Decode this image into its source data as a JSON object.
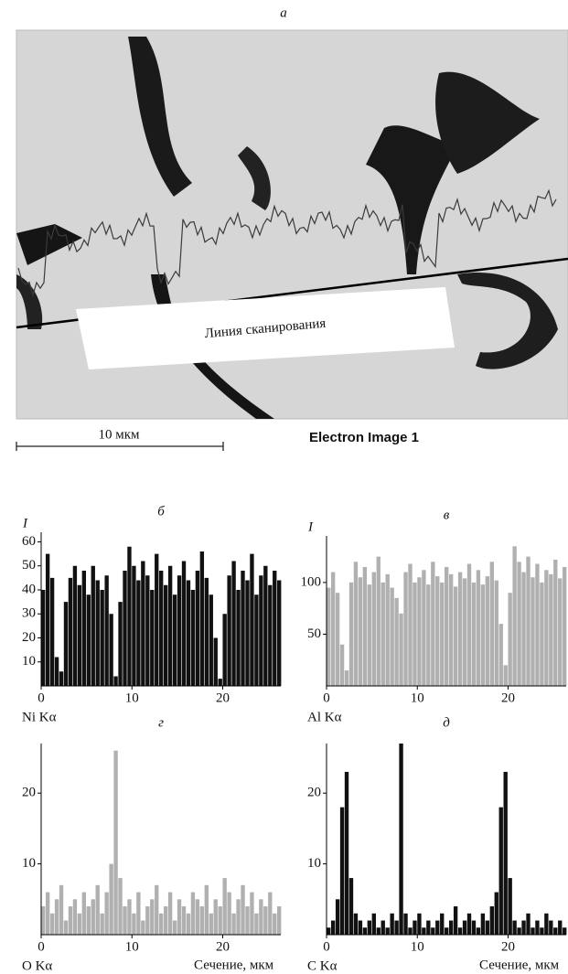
{
  "image": {
    "title": "а",
    "scale_label": "10 мкм",
    "caption": "Electron Image 1",
    "line_label": "Линия сканирования"
  },
  "chart_data": [
    {
      "type": "bar",
      "title": "б",
      "ylabel": "I",
      "series_label": "Ni Kα",
      "color": "#111111",
      "x": [
        0,
        0.5,
        1,
        1.5,
        2,
        2.5,
        3,
        3.5,
        4,
        4.5,
        5,
        5.5,
        6,
        6.5,
        7,
        7.5,
        8,
        8.5,
        9,
        9.5,
        10,
        10.5,
        11,
        11.5,
        12,
        12.5,
        13,
        13.5,
        14,
        14.5,
        15,
        15.5,
        16,
        16.5,
        17,
        17.5,
        18,
        18.5,
        19,
        19.5,
        20,
        20.5,
        21,
        21.5,
        22,
        22.5,
        23,
        23.5,
        24,
        24.5,
        25,
        25.5,
        26
      ],
      "values": [
        40,
        55,
        45,
        12,
        6,
        35,
        45,
        50,
        42,
        48,
        38,
        50,
        44,
        40,
        46,
        30,
        4,
        35,
        48,
        58,
        50,
        44,
        52,
        46,
        40,
        55,
        48,
        42,
        50,
        38,
        46,
        52,
        44,
        40,
        48,
        56,
        45,
        38,
        20,
        3,
        30,
        46,
        52,
        40,
        48,
        44,
        55,
        38,
        46,
        50,
        42,
        48,
        44
      ],
      "xlim": [
        0,
        26.4
      ],
      "xticks": [
        0,
        10,
        20
      ],
      "ylim": [
        0,
        64
      ],
      "yticks": [
        10,
        20,
        30,
        40,
        50,
        60
      ]
    },
    {
      "type": "bar",
      "title": "в",
      "ylabel": "I",
      "series_label": "Al Kα",
      "color": "#b0b0b0",
      "x": [
        0,
        0.5,
        1,
        1.5,
        2,
        2.5,
        3,
        3.5,
        4,
        4.5,
        5,
        5.5,
        6,
        6.5,
        7,
        7.5,
        8,
        8.5,
        9,
        9.5,
        10,
        10.5,
        11,
        11.5,
        12,
        12.5,
        13,
        13.5,
        14,
        14.5,
        15,
        15.5,
        16,
        16.5,
        17,
        17.5,
        18,
        18.5,
        19,
        19.5,
        20,
        20.5,
        21,
        21.5,
        22,
        22.5,
        23,
        23.5,
        24,
        24.5,
        25,
        25.5,
        26
      ],
      "values": [
        95,
        110,
        90,
        40,
        15,
        100,
        120,
        105,
        115,
        98,
        110,
        125,
        100,
        108,
        95,
        85,
        70,
        110,
        118,
        100,
        105,
        112,
        98,
        120,
        106,
        100,
        115,
        108,
        96,
        110,
        104,
        118,
        100,
        112,
        98,
        106,
        120,
        102,
        60,
        20,
        90,
        135,
        120,
        110,
        125,
        105,
        118,
        100,
        112,
        108,
        122,
        104,
        115
      ],
      "xlim": [
        0,
        26.4
      ],
      "xticks": [
        0,
        10,
        20
      ],
      "ylim": [
        0,
        145
      ],
      "yticks": [
        50,
        100
      ]
    },
    {
      "type": "bar",
      "title": "г",
      "series_label": "O Kα",
      "xlabel": "Сечение, мкм",
      "color": "#b0b0b0",
      "x": [
        0,
        0.5,
        1,
        1.5,
        2,
        2.5,
        3,
        3.5,
        4,
        4.5,
        5,
        5.5,
        6,
        6.5,
        7,
        7.5,
        8,
        8.5,
        9,
        9.5,
        10,
        10.5,
        11,
        11.5,
        12,
        12.5,
        13,
        13.5,
        14,
        14.5,
        15,
        15.5,
        16,
        16.5,
        17,
        17.5,
        18,
        18.5,
        19,
        19.5,
        20,
        20.5,
        21,
        21.5,
        22,
        22.5,
        23,
        23.5,
        24,
        24.5,
        25,
        25.5,
        26
      ],
      "values": [
        4,
        6,
        3,
        5,
        7,
        2,
        4,
        5,
        3,
        6,
        4,
        5,
        7,
        3,
        6,
        10,
        26,
        8,
        4,
        5,
        3,
        6,
        2,
        4,
        5,
        7,
        3,
        4,
        6,
        2,
        5,
        4,
        3,
        6,
        5,
        4,
        7,
        3,
        5,
        4,
        8,
        6,
        3,
        5,
        7,
        4,
        6,
        3,
        5,
        4,
        6,
        3,
        4
      ],
      "xlim": [
        0,
        26.4
      ],
      "xticks": [
        0,
        10,
        20
      ],
      "ylim": [
        0,
        27
      ],
      "yticks": [
        10,
        20
      ]
    },
    {
      "type": "bar",
      "title": "д",
      "series_label": "C Kα",
      "xlabel": "Сечение, мкм",
      "color": "#111111",
      "x": [
        0,
        0.5,
        1,
        1.5,
        2,
        2.5,
        3,
        3.5,
        4,
        4.5,
        5,
        5.5,
        6,
        6.5,
        7,
        7.5,
        8,
        8.5,
        9,
        9.5,
        10,
        10.5,
        11,
        11.5,
        12,
        12.5,
        13,
        13.5,
        14,
        14.5,
        15,
        15.5,
        16,
        16.5,
        17,
        17.5,
        18,
        18.5,
        19,
        19.5,
        20,
        20.5,
        21,
        21.5,
        22,
        22.5,
        23,
        23.5,
        24,
        24.5,
        25,
        25.5,
        26
      ],
      "values": [
        1,
        2,
        5,
        18,
        23,
        8,
        3,
        2,
        1,
        2,
        3,
        1,
        2,
        1,
        3,
        2,
        27,
        3,
        1,
        2,
        3,
        1,
        2,
        1,
        2,
        3,
        1,
        2,
        4,
        1,
        2,
        3,
        2,
        1,
        3,
        2,
        4,
        6,
        18,
        23,
        8,
        2,
        1,
        2,
        3,
        1,
        2,
        1,
        3,
        2,
        1,
        2,
        1
      ],
      "xlim": [
        0,
        26.4
      ],
      "xticks": [
        0,
        10,
        20
      ],
      "ylim": [
        0,
        27
      ],
      "yticks": [
        10,
        20
      ]
    }
  ]
}
